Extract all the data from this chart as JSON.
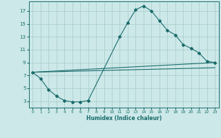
{
  "title": "",
  "xlabel": "Humidex (Indice chaleur)",
  "bg_color": "#cce8e8",
  "grid_color": "#aecece",
  "line_color": "#1a6b6b",
  "xlim": [
    -0.5,
    23.5
  ],
  "ylim": [
    2,
    18.5
  ],
  "xticks": [
    0,
    1,
    2,
    3,
    4,
    5,
    6,
    7,
    8,
    9,
    10,
    11,
    12,
    13,
    14,
    15,
    16,
    17,
    18,
    19,
    20,
    21,
    22,
    23
  ],
  "yticks": [
    3,
    5,
    7,
    9,
    11,
    13,
    15,
    17
  ],
  "series": [
    {
      "x": [
        0,
        1,
        2,
        3,
        4,
        5,
        6,
        7,
        11,
        12,
        13,
        14,
        15,
        16,
        17,
        18,
        19,
        20,
        21,
        22,
        23
      ],
      "y": [
        7.5,
        6.5,
        4.8,
        3.8,
        3.1,
        2.9,
        2.9,
        3.1,
        13.0,
        15.2,
        17.2,
        17.8,
        17.0,
        15.5,
        14.0,
        13.3,
        11.8,
        11.2,
        10.5,
        9.2,
        9.0
      ],
      "with_markers": true
    },
    {
      "x": [
        0,
        23
      ],
      "y": [
        7.5,
        9.0
      ],
      "with_markers": false
    },
    {
      "x": [
        0,
        23
      ],
      "y": [
        7.5,
        8.2
      ],
      "with_markers": false
    }
  ]
}
